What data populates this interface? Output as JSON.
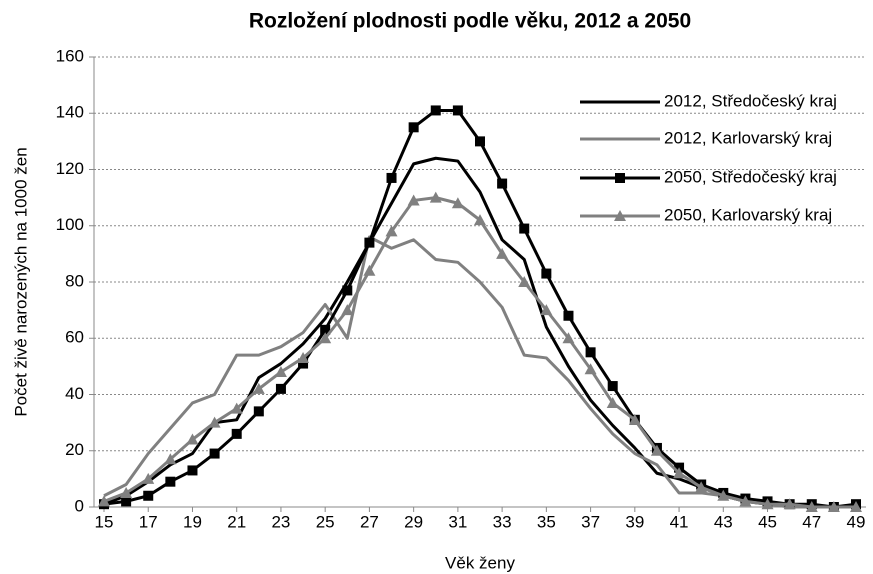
{
  "chart_data": {
    "type": "line",
    "title": "Rozložení plodnosti podle věku, 2012 a 2050",
    "x_label": "Věk ženy",
    "y_label": "Počet živě narozených na 1000 žen",
    "x": [
      15,
      16,
      17,
      18,
      19,
      20,
      21,
      22,
      23,
      24,
      25,
      26,
      27,
      28,
      29,
      30,
      31,
      32,
      33,
      34,
      35,
      36,
      37,
      38,
      39,
      40,
      41,
      42,
      43,
      44,
      45,
      46,
      47,
      48,
      49
    ],
    "xlim": [
      15,
      49
    ],
    "xticks": [
      15,
      17,
      19,
      21,
      23,
      25,
      27,
      29,
      31,
      33,
      35,
      37,
      39,
      41,
      43,
      45,
      47,
      49
    ],
    "ylim": [
      0,
      160
    ],
    "yticks": [
      0,
      20,
      40,
      60,
      80,
      100,
      120,
      140,
      160
    ],
    "grid": true,
    "legend": "top-right",
    "series": [
      {
        "name": "2012, Středočeský kraj",
        "color": "#000000",
        "marker": "none",
        "values": [
          1,
          4,
          9,
          15,
          19,
          30,
          31,
          46,
          51,
          58,
          67,
          80,
          94,
          108,
          122,
          124,
          123,
          112,
          95,
          88,
          64,
          50,
          38,
          29,
          21,
          12,
          10,
          7,
          4,
          2,
          1,
          1,
          0,
          0,
          0
        ]
      },
      {
        "name": "2012, Karlovarský kraj",
        "color": "#808080",
        "marker": "none",
        "values": [
          4,
          8,
          19,
          28,
          37,
          40,
          54,
          54,
          57,
          62,
          72,
          60,
          96,
          92,
          95,
          88,
          87,
          80,
          71,
          54,
          53,
          45,
          35,
          26,
          19,
          15,
          5,
          5,
          4,
          2,
          1,
          0,
          0,
          0,
          0
        ]
      },
      {
        "name": "2050, Středočeský kraj",
        "color": "#000000",
        "marker": "square",
        "values": [
          1,
          2,
          4,
          9,
          13,
          19,
          26,
          34,
          42,
          51,
          63,
          77,
          94,
          117,
          135,
          141,
          141,
          130,
          115,
          99,
          83,
          68,
          55,
          43,
          31,
          21,
          14,
          8,
          5,
          3,
          2,
          1,
          1,
          0,
          1
        ]
      },
      {
        "name": "2050, Karlovarský kraj",
        "color": "#808080",
        "marker": "triangle",
        "values": [
          2,
          5,
          10,
          17,
          24,
          30,
          35,
          42,
          48,
          53,
          60,
          70,
          84,
          98,
          109,
          110,
          108,
          102,
          90,
          80,
          70,
          60,
          49,
          37,
          31,
          20,
          12,
          7,
          4,
          2,
          1,
          1,
          0,
          0,
          0
        ]
      }
    ]
  }
}
